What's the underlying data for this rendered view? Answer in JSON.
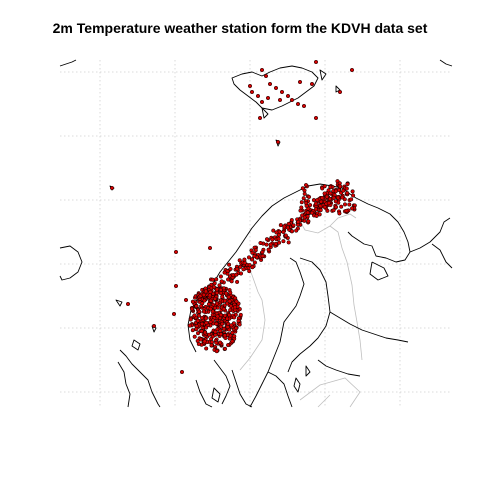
{
  "title": "2m Temperature weather station form the KDVH data set",
  "colors": {
    "station_fill": "#d40000",
    "station_stroke": "#000000",
    "coastline": "#000000",
    "border": "#bfbfbf",
    "grid": "#d0d0d0",
    "background": "#ffffff"
  },
  "map": {
    "grid": true,
    "grid_style": "dotted",
    "region": "Norway, Sweden, Finland, Svalbard, North Sea",
    "marker": "filled circle",
    "station_count_shown": 0
  }
}
